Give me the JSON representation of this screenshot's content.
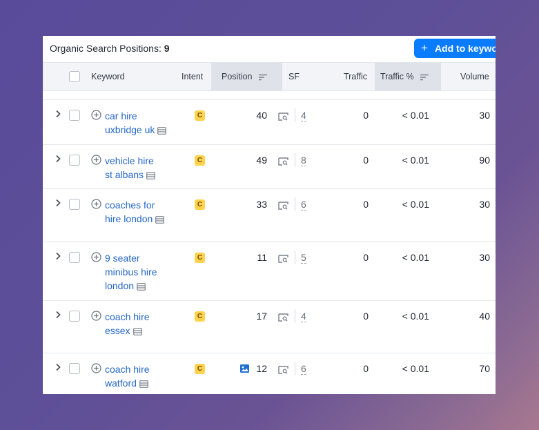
{
  "header": {
    "title": "Organic Search Positions:",
    "count": "9",
    "add_button_label": "Add to keywo"
  },
  "columns": {
    "keyword": "Keyword",
    "intent": "Intent",
    "position": "Position",
    "sf": "SF",
    "traffic": "Traffic",
    "traffic_pct": "Traffic %",
    "volume": "Volume"
  },
  "rows": [
    {
      "kw1": "car hire",
      "kw2": "uxbridge uk",
      "kw3": "",
      "intent": "C",
      "position": "40",
      "sf": "4",
      "traffic": "0",
      "traffic_pct": "< 0.01",
      "volume": "30"
    },
    {
      "kw1": "vehicle hire",
      "kw2": "st albans",
      "kw3": "",
      "intent": "C",
      "position": "49",
      "sf": "8",
      "traffic": "0",
      "traffic_pct": "< 0.01",
      "volume": "90"
    },
    {
      "kw1": "coaches for",
      "kw2": "hire london",
      "kw3": "",
      "intent": "C",
      "position": "33",
      "sf": "6",
      "traffic": "0",
      "traffic_pct": "< 0.01",
      "volume": "30"
    },
    {
      "kw1": "9 seater",
      "kw2": "minibus hire",
      "kw3": "london",
      "intent": "C",
      "position": "11",
      "sf": "5",
      "traffic": "0",
      "traffic_pct": "< 0.01",
      "volume": "30"
    },
    {
      "kw1": "coach hire",
      "kw2": "essex",
      "kw3": "",
      "intent": "C",
      "position": "17",
      "sf": "4",
      "traffic": "0",
      "traffic_pct": "< 0.01",
      "volume": "40"
    },
    {
      "kw1": "coach hire",
      "kw2": "watford",
      "kw3": "",
      "intent": "C",
      "position": "12",
      "sf": "6",
      "traffic": "0",
      "traffic_pct": "< 0.01",
      "volume": "70"
    }
  ],
  "icons": {
    "expand": "chevron-right-icon",
    "add": "plus-circle-icon",
    "serp": "serp-snapshot-icon",
    "sort": "sort-icon",
    "image_feature": "image-icon",
    "sf_feature": "serp-feature-icon"
  },
  "colors": {
    "accent": "#0a7cff",
    "link": "#2366c7",
    "intent_commercial": "#ffd24d"
  }
}
